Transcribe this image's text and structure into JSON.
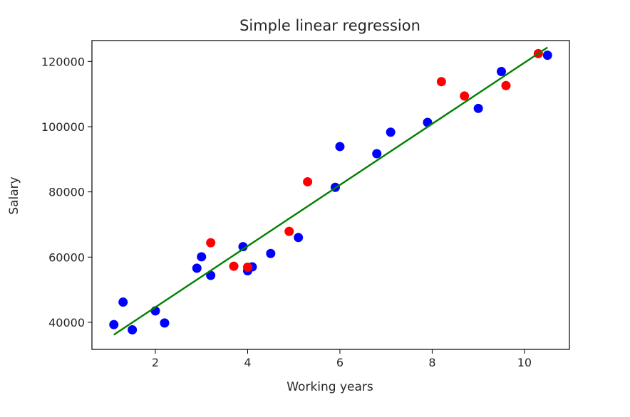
{
  "chart_data": {
    "type": "scatter",
    "title": "Simple linear regression",
    "xlabel": "Working years",
    "ylabel": "Salary",
    "xlim": [
      0.625,
      10.975
    ],
    "ylim": [
      31700,
      126400
    ],
    "x_ticks": [
      2,
      4,
      6,
      8,
      10
    ],
    "y_ticks": [
      40000,
      60000,
      80000,
      100000,
      120000
    ],
    "x_tick_labels": [
      "2",
      "4",
      "6",
      "8",
      "10"
    ],
    "y_tick_labels": [
      "40000",
      "60000",
      "80000",
      "100000",
      "120000"
    ],
    "grid": false,
    "legend": false,
    "series": [
      {
        "color": "#0000ff",
        "marker": "circle",
        "points": [
          [
            1.1,
            39300
          ],
          [
            1.3,
            46200
          ],
          [
            1.5,
            37700
          ],
          [
            2.0,
            43500
          ],
          [
            2.2,
            39800
          ],
          [
            2.9,
            56600
          ],
          [
            3.0,
            60100
          ],
          [
            3.2,
            54400
          ],
          [
            3.9,
            63200
          ],
          [
            4.0,
            55800
          ],
          [
            4.1,
            57000
          ],
          [
            4.5,
            61100
          ],
          [
            5.1,
            66000
          ],
          [
            5.9,
            81400
          ],
          [
            6.0,
            93900
          ],
          [
            6.8,
            91700
          ],
          [
            7.1,
            98300
          ],
          [
            7.9,
            101300
          ],
          [
            9.0,
            105600
          ],
          [
            9.5,
            116900
          ],
          [
            10.5,
            121900
          ]
        ]
      },
      {
        "color": "#ff0000",
        "marker": "circle",
        "points": [
          [
            3.2,
            64400
          ],
          [
            3.7,
            57200
          ],
          [
            4.0,
            56900
          ],
          [
            4.9,
            67900
          ],
          [
            5.3,
            83100
          ],
          [
            8.2,
            113800
          ],
          [
            8.7,
            109400
          ],
          [
            9.6,
            112600
          ],
          [
            10.3,
            122400
          ]
        ]
      },
      {
        "color": "#008000",
        "marker": "line",
        "points": [
          [
            1.1,
            36200
          ],
          [
            10.5,
            124300
          ]
        ]
      }
    ]
  }
}
